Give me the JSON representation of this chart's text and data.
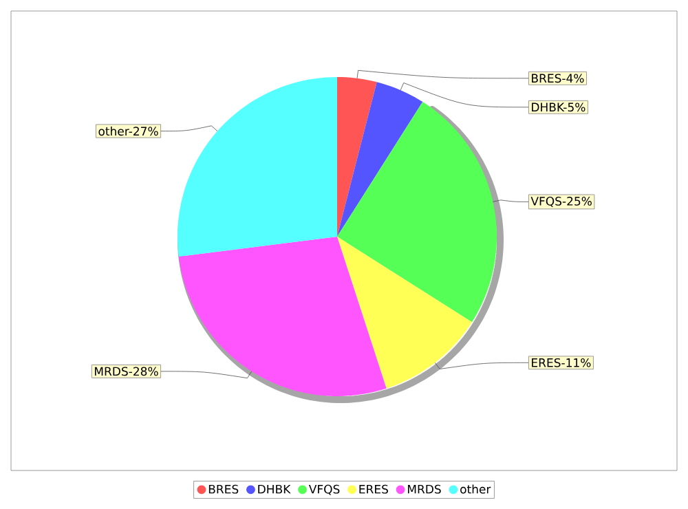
{
  "chart_data": {
    "type": "pie",
    "categories": [
      "BRES",
      "DHBK",
      "VFQS",
      "ERES",
      "MRDS",
      "other"
    ],
    "values": [
      4,
      5,
      25,
      11,
      28,
      27
    ],
    "colors": [
      "#ff5555",
      "#5555ff",
      "#55ff55",
      "#ffff55",
      "#ff55ff",
      "#55ffff"
    ],
    "value_labels": [
      "BRES-4%",
      "DHBK-5%",
      "VFQS-25%",
      "ERES-11%",
      "MRDS-28%",
      "other-27%"
    ],
    "legend": "bottom"
  }
}
